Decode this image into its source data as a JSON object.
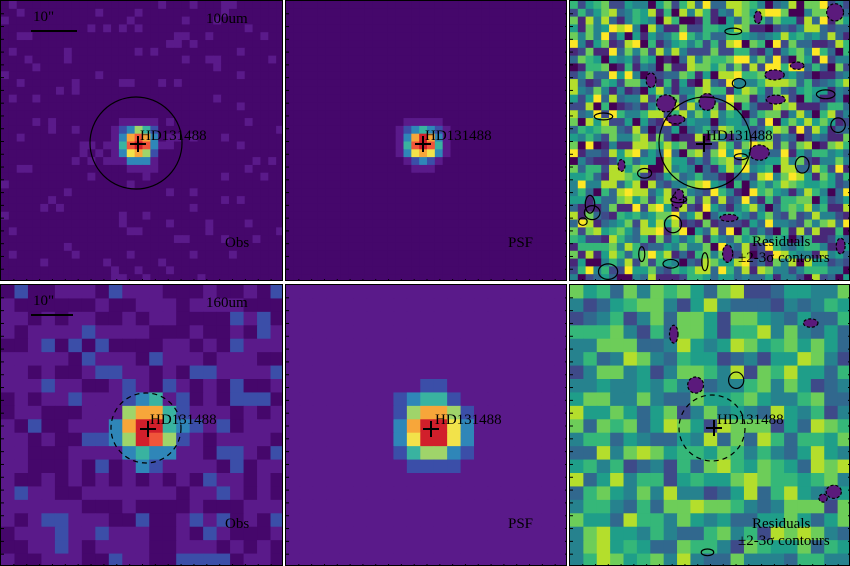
{
  "colors": {
    "viridis": [
      "#440154",
      "#482878",
      "#3e4a89",
      "#31688e",
      "#26828e",
      "#1f9e89",
      "#35b779",
      "#6dcd59",
      "#b4de2c",
      "#fde725"
    ],
    "hot": [
      "#45076b",
      "#5a1a8a",
      "#3b4ea8",
      "#2f86b8",
      "#39b3a0",
      "#9fd46a",
      "#f2e24a",
      "#f7a63a",
      "#f0553a",
      "#d11f2b"
    ],
    "contour": "#000000"
  },
  "rows": [
    {
      "band_label": "100um",
      "scale_label": "10\"",
      "target_name": "HD131488",
      "obs_label": "Obs",
      "psf_label": "PSF",
      "residual_label": "Residuals",
      "contour_label": "±2-3σ contours",
      "aperture_style": "solid"
    },
    {
      "band_label": "160um",
      "scale_label": "10\"",
      "target_name": "HD131488",
      "obs_label": "Obs",
      "psf_label": "PSF",
      "residual_label": "Residuals",
      "contour_label": "±2-3σ contours",
      "aperture_style": "dashed"
    }
  ]
}
